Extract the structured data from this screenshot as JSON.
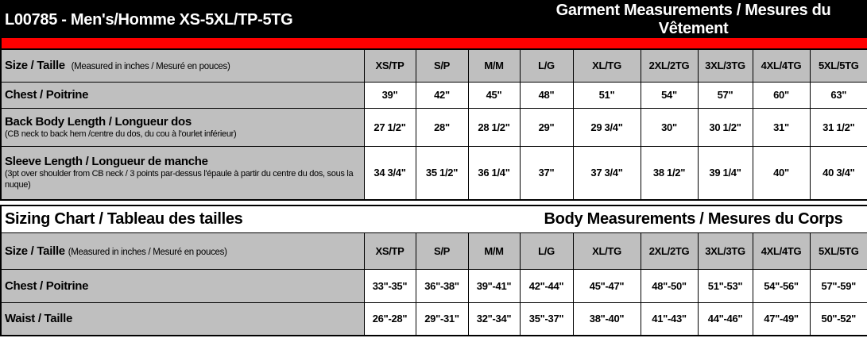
{
  "garment": {
    "title": "L00785 - Men's/Homme XS-5XL/TP-5TG",
    "subtitle": "Garment Measurements / Mesures du Vêtement",
    "size_label": "Size / Taille",
    "size_note": "(Measured in inches / Mesuré en pouces)",
    "sizes": [
      "XS/TP",
      "S/P",
      "M/M",
      "L/G",
      "XL/TG",
      "2XL/2TG",
      "3XL/3TG",
      "4XL/4TG",
      "5XL/5TG"
    ],
    "rows": [
      {
        "label": "Chest / Poitrine",
        "note": "",
        "values": [
          "39\"",
          "42\"",
          "45\"",
          "48\"",
          "51\"",
          "54\"",
          "57\"",
          "60\"",
          "63\""
        ]
      },
      {
        "label": "Back Body Length / Longueur dos",
        "note": "(CB neck to back hem /centre du dos, du cou à l'ourlet inférieur)",
        "values": [
          "27 1/2\"",
          "28\"",
          "28 1/2\"",
          "29\"",
          "29 3/4\"",
          "30\"",
          "30 1/2\"",
          "31\"",
          "31 1/2\""
        ]
      },
      {
        "label": "Sleeve Length / Longueur de manche",
        "note": " (3pt over shoulder from CB neck / 3 points par-dessus l'épaule à partir du centre du dos, sous la nuque)",
        "values": [
          "34 3/4\"",
          "35 1/2\"",
          "36 1/4\"",
          "37\"",
          "37 3/4\"",
          "38 1/2\"",
          "39 1/4\"",
          "40\"",
          "40 3/4\""
        ]
      }
    ]
  },
  "body": {
    "title": "Sizing Chart / Tableau des tailles",
    "subtitle": "Body Measurements / Mesures du Corps",
    "size_label": "Size / Taille",
    "size_note": "(Measured in inches / Mesuré en pouces)",
    "sizes": [
      "XS/TP",
      "S/P",
      "M/M",
      "L/G",
      "XL/TG",
      "2XL/2TG",
      "3XL/3TG",
      "4XL/4TG",
      "5XL/5TG"
    ],
    "rows": [
      {
        "label": "Chest / Poitrine",
        "values": [
          "33\"-35\"",
          "36\"-38\"",
          "39\"-41\"",
          "42\"-44\"",
          "45\"-47\"",
          "48\"-50\"",
          "51\"-53\"",
          "54\"-56\"",
          "57\"-59\""
        ]
      },
      {
        "label": "Waist / Taille",
        "values": [
          "26\"-28\"",
          "29\"-31\"",
          "32\"-34\"",
          "35\"-37\"",
          "38\"-40\"",
          "41\"-43\"",
          "44\"-46\"",
          "47\"-49\"",
          "50\"-52\""
        ]
      }
    ]
  },
  "colors": {
    "header_bg": "#000000",
    "accent_band": "#ff0000",
    "label_bg": "#bfbfbf"
  }
}
